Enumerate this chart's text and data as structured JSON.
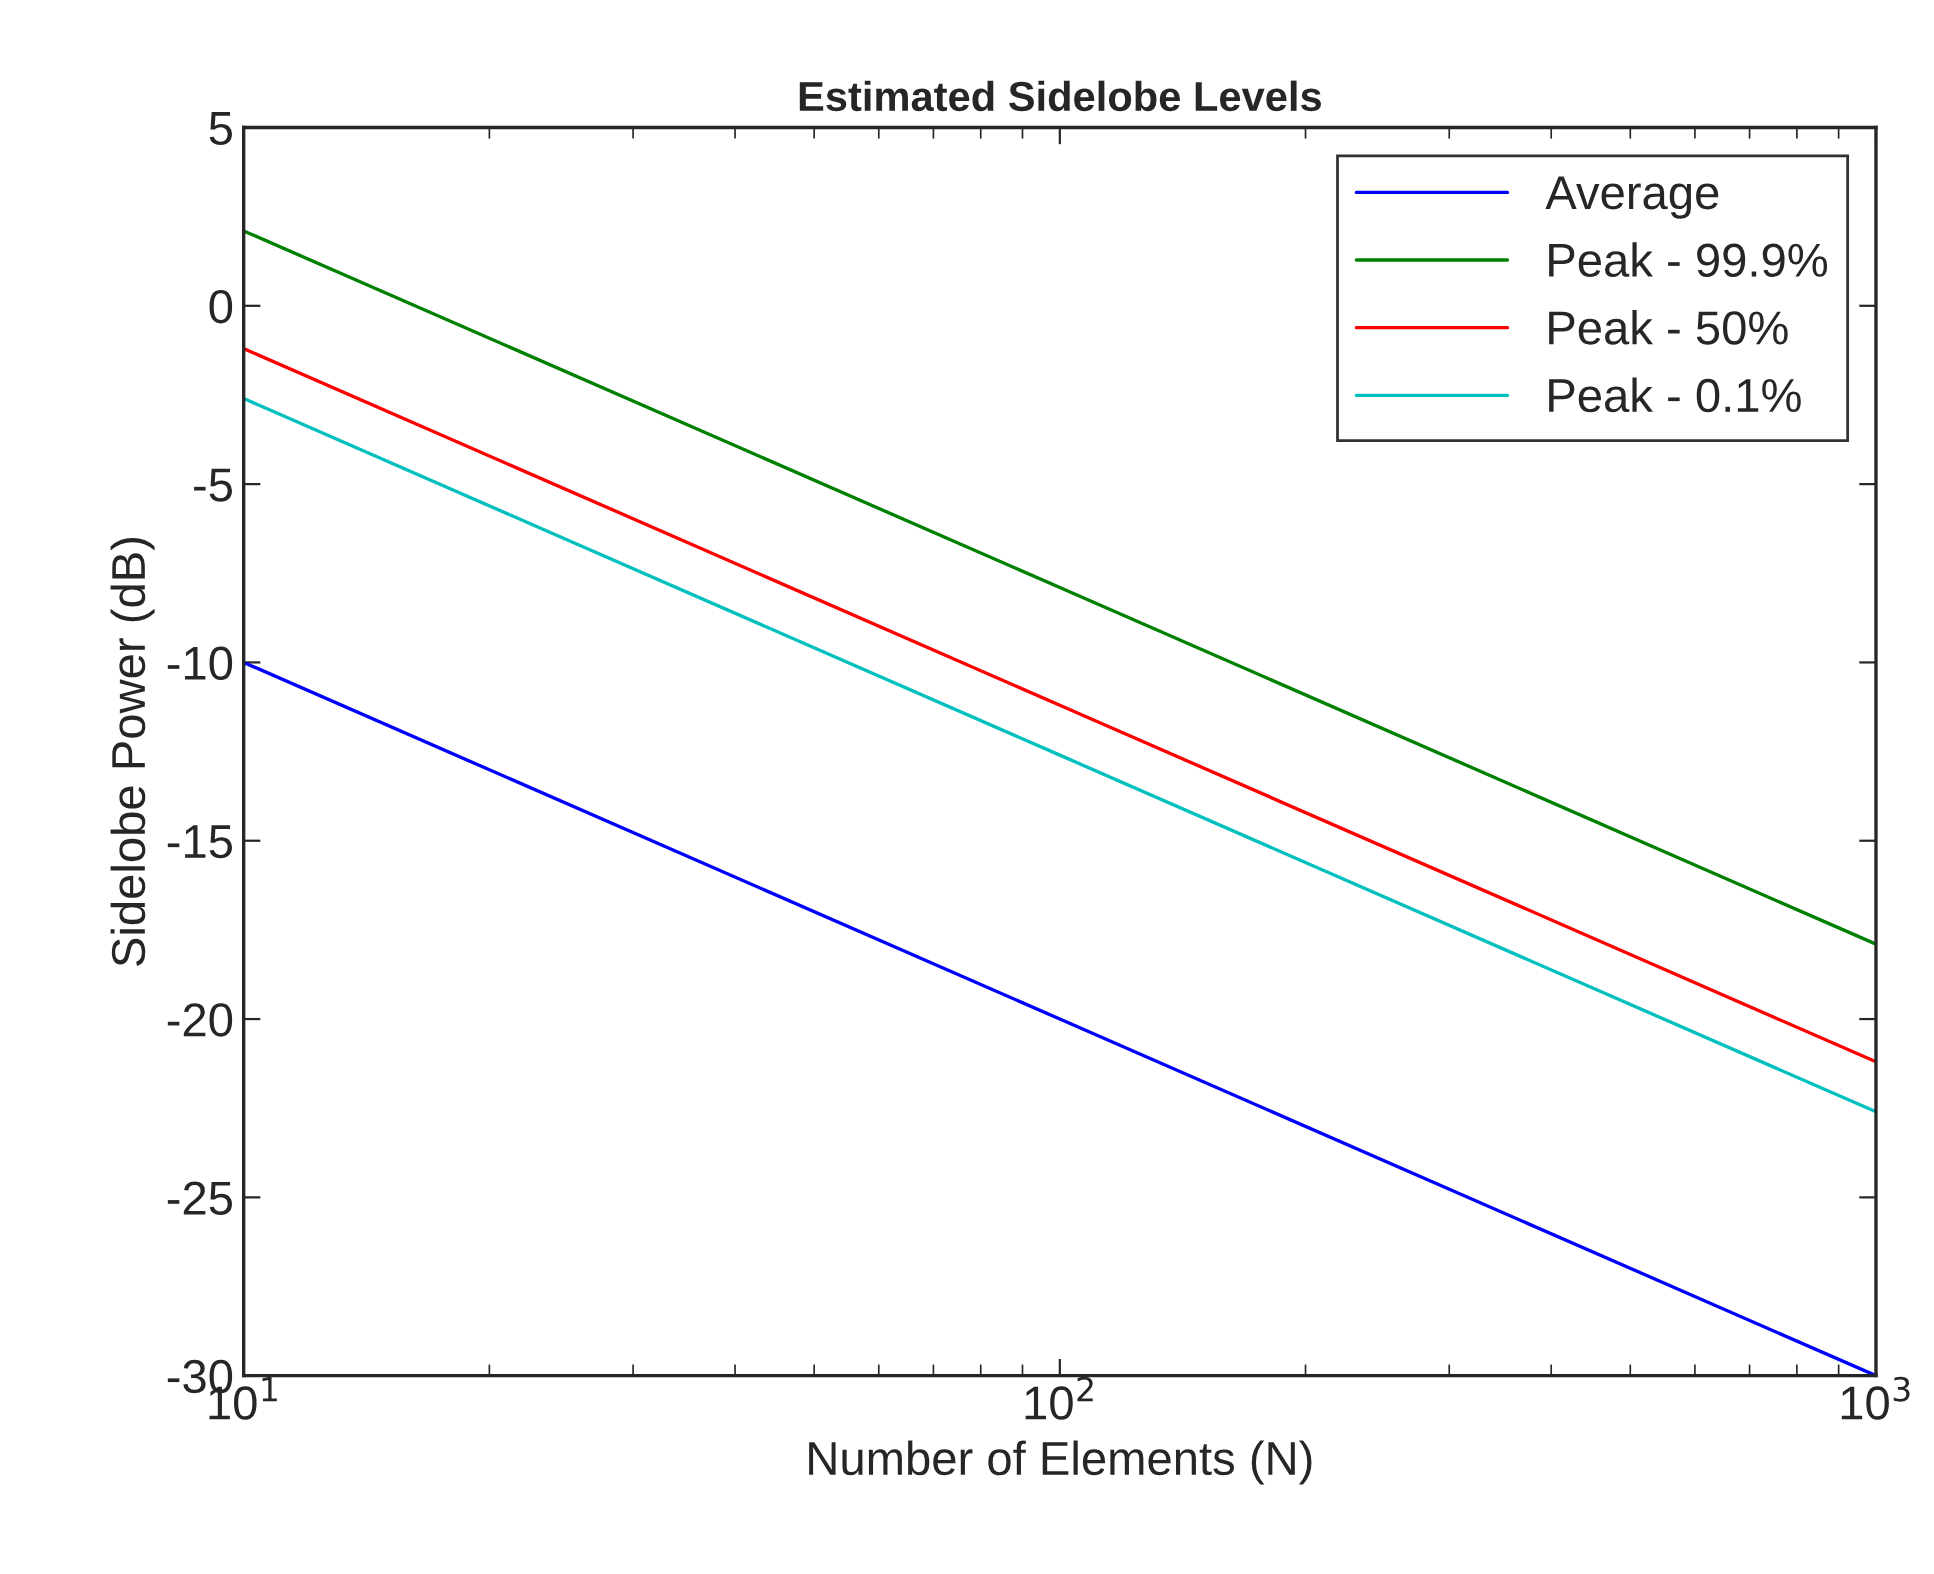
{
  "chart_data": {
    "type": "line",
    "title": "Estimated Sidelobe Levels",
    "xlabel": "Number of Elements (N)",
    "ylabel": "Sidelobe Power (dB)",
    "log": "x",
    "xlim": [
      10,
      1000
    ],
    "xticks": [
      {
        "value": 10,
        "label": "10$^{1}$"
      },
      {
        "value": 100,
        "label": "10$^{2}$"
      },
      {
        "value": 1000,
        "label": "10$^{3}$"
      }
    ],
    "ylim": [
      -30,
      5
    ],
    "yticks": [
      -30,
      -25,
      -20,
      -15,
      -10,
      -5,
      0,
      5
    ],
    "grid": false,
    "legend": "top right",
    "marker": "none",
    "line_style": "solid",
    "series": [
      {
        "name": "Average",
        "color": "#0000ff",
        "x": [
          10,
          100,
          1000
        ],
        "values": [
          -10,
          -20,
          -30
        ]
      },
      {
        "name": "Peak - 99.9%",
        "color": "#008000",
        "x": [
          10,
          100,
          1000
        ],
        "values": [
          2.1,
          -7.9,
          -17.9
        ]
      },
      {
        "name": "Peak - 50%",
        "color": "#ff0000",
        "x": [
          10,
          100,
          1000
        ],
        "values": [
          -1.2,
          -11.2,
          -21.2
        ]
      },
      {
        "name": "Peak - 0.1%",
        "color": "#00bfbf",
        "x": [
          10,
          100,
          1000
        ],
        "values": [
          -2.6,
          -12.6,
          -22.6
        ]
      }
    ]
  }
}
